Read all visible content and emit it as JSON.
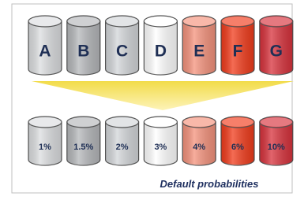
{
  "top_row": [
    {
      "label": "A",
      "color": "#dcdee0"
    },
    {
      "label": "B",
      "color": "#b5b7ba"
    },
    {
      "label": "C",
      "color": "#d3d6d9"
    },
    {
      "label": "D",
      "color": "#ffffff"
    },
    {
      "label": "E",
      "color": "#f4927c"
    },
    {
      "label": "F",
      "color": "#f13b1b"
    },
    {
      "label": "G",
      "color": "#d8323c"
    }
  ],
  "bottom_row": [
    {
      "label": "1%",
      "color": "#dcdee0"
    },
    {
      "label": "1.5%",
      "color": "#b5b7ba"
    },
    {
      "label": "2%",
      "color": "#d3d6d9"
    },
    {
      "label": "3%",
      "color": "#ffffff"
    },
    {
      "label": "4%",
      "color": "#f4927c"
    },
    {
      "label": "6%",
      "color": "#f13b1b"
    },
    {
      "label": "10%",
      "color": "#d8323c"
    }
  ],
  "caption": "Default probabilities"
}
